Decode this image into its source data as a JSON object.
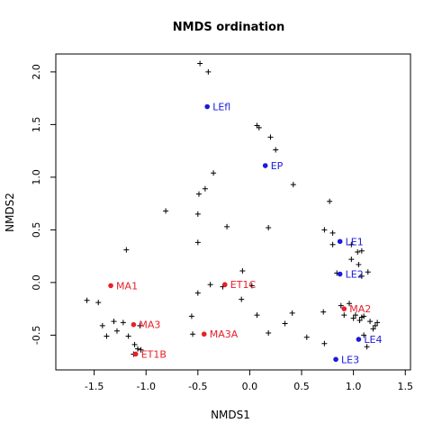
{
  "chart_data": {
    "type": "scatter",
    "title": "NMDS ordination",
    "xlabel": "NMDS1",
    "ylabel": "NMDS2",
    "xlim": [
      -1.87,
      1.55
    ],
    "ylim": [
      -0.83,
      2.17
    ],
    "xticks": [
      -1.5,
      -1.0,
      -0.5,
      0.0,
      0.5,
      1.0,
      1.5
    ],
    "xtick_labels": [
      "-1.5",
      "-1.0",
      "-0.5",
      "0.0",
      "0.5",
      "1.0",
      "1.5"
    ],
    "yticks": [
      -0.5,
      0.0,
      0.5,
      1.0,
      1.5,
      2.0
    ],
    "ytick_labels": [
      "-0.5",
      "0.0",
      "0.5",
      "1.0",
      "1.5",
      "2.0"
    ],
    "grid": false,
    "legend": "none",
    "colors": {
      "red_group": "#e8202a",
      "blue_group": "#1a1adb",
      "species": "#000000"
    },
    "sites": [
      {
        "label": "LEfl",
        "x": -0.41,
        "y": 1.67,
        "group": "blue"
      },
      {
        "label": "EP",
        "x": 0.15,
        "y": 1.11,
        "group": "blue"
      },
      {
        "label": "LE1",
        "x": 0.87,
        "y": 0.39,
        "group": "blue"
      },
      {
        "label": "LE2",
        "x": 0.87,
        "y": 0.08,
        "group": "blue"
      },
      {
        "label": "LE4",
        "x": 1.05,
        "y": -0.54,
        "group": "blue"
      },
      {
        "label": "LE3",
        "x": 0.83,
        "y": -0.73,
        "group": "blue"
      },
      {
        "label": "MA1",
        "x": -1.34,
        "y": -0.03,
        "group": "red"
      },
      {
        "label": "ET1C",
        "x": -0.24,
        "y": -0.02,
        "group": "red"
      },
      {
        "label": "MA2",
        "x": 0.91,
        "y": -0.25,
        "group": "red"
      },
      {
        "label": "MA3",
        "x": -1.12,
        "y": -0.4,
        "group": "red"
      },
      {
        "label": "MA3A",
        "x": -0.44,
        "y": -0.49,
        "group": "red"
      },
      {
        "label": "ET1B",
        "x": -1.1,
        "y": -0.68,
        "group": "red"
      }
    ],
    "species": [
      [
        -0.48,
        2.08
      ],
      [
        -0.4,
        2.0
      ],
      [
        0.07,
        1.49
      ],
      [
        0.09,
        1.47
      ],
      [
        0.2,
        1.38
      ],
      [
        0.25,
        1.26
      ],
      [
        -0.35,
        1.04
      ],
      [
        0.42,
        0.93
      ],
      [
        -0.43,
        0.89
      ],
      [
        -0.49,
        0.84
      ],
      [
        -0.81,
        0.68
      ],
      [
        -0.5,
        0.65
      ],
      [
        0.77,
        0.77
      ],
      [
        -0.22,
        0.53
      ],
      [
        0.18,
        0.52
      ],
      [
        0.72,
        0.5
      ],
      [
        0.8,
        0.47
      ],
      [
        -0.5,
        0.38
      ],
      [
        0.8,
        0.36
      ],
      [
        0.98,
        0.36
      ],
      [
        1.04,
        0.29
      ],
      [
        1.08,
        0.3
      ],
      [
        -1.19,
        0.31
      ],
      [
        0.98,
        0.22
      ],
      [
        1.05,
        0.17
      ],
      [
        1.14,
        0.1
      ],
      [
        0.84,
        0.09
      ],
      [
        1.08,
        0.06
      ],
      [
        -0.07,
        0.11
      ],
      [
        -0.38,
        -0.02
      ],
      [
        -0.26,
        -0.04
      ],
      [
        -0.5,
        -0.1
      ],
      [
        0.02,
        -0.03
      ],
      [
        -1.57,
        -0.17
      ],
      [
        -1.46,
        -0.19
      ],
      [
        -0.08,
        -0.16
      ],
      [
        0.88,
        -0.22
      ],
      [
        0.96,
        -0.2
      ],
      [
        1.02,
        -0.31
      ],
      [
        1.08,
        -0.33
      ],
      [
        1.1,
        -0.32
      ],
      [
        1.16,
        -0.37
      ],
      [
        1.23,
        -0.38
      ],
      [
        0.71,
        -0.28
      ],
      [
        0.91,
        -0.31
      ],
      [
        0.41,
        -0.29
      ],
      [
        -0.56,
        -0.32
      ],
      [
        0.07,
        -0.31
      ],
      [
        -1.42,
        -0.41
      ],
      [
        -1.31,
        -0.37
      ],
      [
        -1.22,
        -0.38
      ],
      [
        -1.06,
        -0.41
      ],
      [
        0.34,
        -0.39
      ],
      [
        -1.38,
        -0.51
      ],
      [
        -1.28,
        -0.46
      ],
      [
        -1.17,
        -0.51
      ],
      [
        -0.55,
        -0.49
      ],
      [
        0.18,
        -0.48
      ],
      [
        0.55,
        -0.52
      ],
      [
        -1.11,
        -0.59
      ],
      [
        -1.08,
        -0.63
      ],
      [
        -1.05,
        -0.64
      ],
      [
        0.72,
        -0.58
      ],
      [
        1.13,
        -0.61
      ],
      [
        1.21,
        -0.41
      ],
      [
        1.19,
        -0.44
      ],
      [
        1.06,
        -0.36
      ],
      [
        1.0,
        -0.34
      ],
      [
        -1.12,
        -0.68
      ],
      [
        1.1,
        -0.5
      ]
    ]
  }
}
